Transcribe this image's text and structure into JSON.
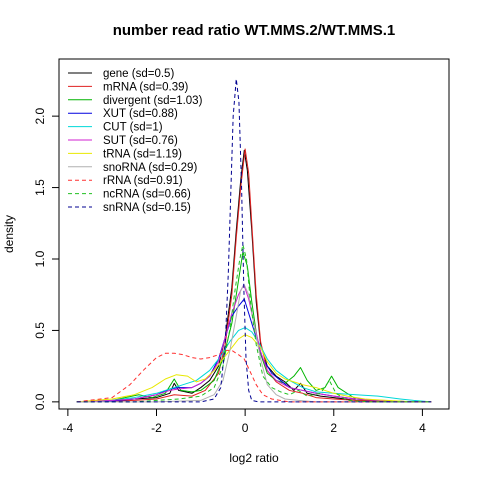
{
  "chart_data": {
    "type": "line",
    "title": "number read ratio WT.MMS.2/WT.MMS.1",
    "xlabel": "log2 ratio",
    "ylabel": "density",
    "xlim": [
      -4.2,
      4.6
    ],
    "ylim": [
      -0.05,
      2.4
    ],
    "xticks": [
      -4,
      -2,
      0,
      2,
      4
    ],
    "yticks": [
      0.0,
      0.5,
      1.0,
      1.5,
      2.0
    ],
    "xtick_labels": [
      "-4",
      "-2",
      "0",
      "2",
      "4"
    ],
    "ytick_labels": [
      "0.0",
      "0.5",
      "1.0",
      "1.5",
      "2.0"
    ],
    "legend_position": "top-left",
    "grid": false,
    "series": [
      {
        "name": "gene (sd=0.5)",
        "color": "#000000",
        "dash": "solid",
        "points": [
          [
            -3.8,
            0
          ],
          [
            -3.0,
            0.005
          ],
          [
            -2.5,
            0.02
          ],
          [
            -2.0,
            0.03
          ],
          [
            -1.7,
            0.06
          ],
          [
            -1.6,
            0.13
          ],
          [
            -1.5,
            0.08
          ],
          [
            -1.2,
            0.06
          ],
          [
            -1.0,
            0.1
          ],
          [
            -0.8,
            0.15
          ],
          [
            -0.6,
            0.25
          ],
          [
            -0.45,
            0.45
          ],
          [
            -0.3,
            0.8
          ],
          [
            -0.2,
            1.2
          ],
          [
            -0.1,
            1.55
          ],
          [
            -0.02,
            1.76
          ],
          [
            0.05,
            1.62
          ],
          [
            0.15,
            1.2
          ],
          [
            0.25,
            0.7
          ],
          [
            0.35,
            0.4
          ],
          [
            0.5,
            0.25
          ],
          [
            0.7,
            0.18
          ],
          [
            0.9,
            0.14
          ],
          [
            1.1,
            0.08
          ],
          [
            1.25,
            0.13
          ],
          [
            1.4,
            0.06
          ],
          [
            1.7,
            0.04
          ],
          [
            2.0,
            0.03
          ],
          [
            2.5,
            0.01
          ],
          [
            3.5,
            0
          ],
          [
            4.2,
            0
          ]
        ]
      },
      {
        "name": "mRNA (sd=0.39)",
        "color": "#df2020",
        "dash": "solid",
        "points": [
          [
            -3.8,
            0
          ],
          [
            -2.5,
            0.01
          ],
          [
            -2.0,
            0.02
          ],
          [
            -1.6,
            0.05
          ],
          [
            -1.2,
            0.04
          ],
          [
            -0.9,
            0.08
          ],
          [
            -0.6,
            0.2
          ],
          [
            -0.45,
            0.4
          ],
          [
            -0.3,
            0.75
          ],
          [
            -0.2,
            1.15
          ],
          [
            -0.1,
            1.5
          ],
          [
            0.0,
            1.77
          ],
          [
            0.08,
            1.6
          ],
          [
            0.15,
            1.25
          ],
          [
            0.25,
            0.75
          ],
          [
            0.35,
            0.42
          ],
          [
            0.5,
            0.22
          ],
          [
            0.7,
            0.14
          ],
          [
            1.0,
            0.08
          ],
          [
            1.3,
            0.06
          ],
          [
            1.6,
            0.03
          ],
          [
            2.0,
            0.02
          ],
          [
            2.5,
            0.01
          ],
          [
            3.5,
            0
          ],
          [
            4.2,
            0
          ]
        ]
      },
      {
        "name": "divergent (sd=1.03)",
        "color": "#00b400",
        "dash": "solid",
        "points": [
          [
            -3.8,
            0
          ],
          [
            -3.0,
            0.01
          ],
          [
            -2.4,
            0.05
          ],
          [
            -2.1,
            0.03
          ],
          [
            -1.8,
            0.06
          ],
          [
            -1.6,
            0.16
          ],
          [
            -1.45,
            0.08
          ],
          [
            -1.2,
            0.07
          ],
          [
            -1.0,
            0.08
          ],
          [
            -0.7,
            0.15
          ],
          [
            -0.5,
            0.3
          ],
          [
            -0.3,
            0.55
          ],
          [
            -0.15,
            0.85
          ],
          [
            -0.05,
            1.05
          ],
          [
            0.05,
            0.95
          ],
          [
            0.15,
            0.7
          ],
          [
            0.3,
            0.38
          ],
          [
            0.5,
            0.2
          ],
          [
            0.7,
            0.15
          ],
          [
            0.9,
            0.13
          ],
          [
            1.1,
            0.18
          ],
          [
            1.25,
            0.24
          ],
          [
            1.4,
            0.15
          ],
          [
            1.6,
            0.08
          ],
          [
            1.8,
            0.1
          ],
          [
            1.95,
            0.18
          ],
          [
            2.1,
            0.1
          ],
          [
            2.5,
            0.02
          ],
          [
            3.0,
            0.01
          ],
          [
            3.8,
            0
          ],
          [
            4.2,
            0
          ]
        ]
      },
      {
        "name": "XUT (sd=0.88)",
        "color": "#0000df",
        "dash": "solid",
        "points": [
          [
            -3.8,
            0
          ],
          [
            -3.0,
            0.005
          ],
          [
            -2.5,
            0.02
          ],
          [
            -2.0,
            0.05
          ],
          [
            -1.7,
            0.09
          ],
          [
            -1.5,
            0.1
          ],
          [
            -1.2,
            0.1
          ],
          [
            -1.0,
            0.13
          ],
          [
            -0.8,
            0.18
          ],
          [
            -0.6,
            0.3
          ],
          [
            -0.45,
            0.45
          ],
          [
            -0.3,
            0.6
          ],
          [
            -0.15,
            0.67
          ],
          [
            -0.02,
            0.72
          ],
          [
            0.1,
            0.6
          ],
          [
            0.25,
            0.45
          ],
          [
            0.4,
            0.3
          ],
          [
            0.6,
            0.2
          ],
          [
            0.8,
            0.15
          ],
          [
            1.0,
            0.1
          ],
          [
            1.3,
            0.08
          ],
          [
            1.6,
            0.06
          ],
          [
            2.0,
            0.04
          ],
          [
            2.5,
            0.02
          ],
          [
            3.0,
            0.01
          ],
          [
            3.8,
            0
          ],
          [
            4.2,
            0
          ]
        ]
      },
      {
        "name": "CUT (sd=1)",
        "color": "#00d8d8",
        "dash": "solid",
        "points": [
          [
            -3.8,
            0
          ],
          [
            -3.0,
            0.01
          ],
          [
            -2.5,
            0.03
          ],
          [
            -2.0,
            0.06
          ],
          [
            -1.7,
            0.09
          ],
          [
            -1.4,
            0.12
          ],
          [
            -1.1,
            0.15
          ],
          [
            -0.8,
            0.22
          ],
          [
            -0.55,
            0.32
          ],
          [
            -0.35,
            0.42
          ],
          [
            -0.15,
            0.5
          ],
          [
            0.0,
            0.52
          ],
          [
            0.15,
            0.49
          ],
          [
            0.3,
            0.42
          ],
          [
            0.5,
            0.3
          ],
          [
            0.7,
            0.22
          ],
          [
            1.0,
            0.15
          ],
          [
            1.3,
            0.1
          ],
          [
            1.6,
            0.07
          ],
          [
            2.0,
            0.06
          ],
          [
            2.5,
            0.05
          ],
          [
            3.0,
            0.04
          ],
          [
            3.5,
            0.02
          ],
          [
            3.8,
            0.01
          ],
          [
            4.2,
            0
          ]
        ]
      },
      {
        "name": "SUT (sd=0.76)",
        "color": "#d020d0",
        "dash": "solid",
        "points": [
          [
            -3.8,
            0
          ],
          [
            -3.0,
            0.01
          ],
          [
            -2.5,
            0.02
          ],
          [
            -2.0,
            0.05
          ],
          [
            -1.7,
            0.08
          ],
          [
            -1.5,
            0.09
          ],
          [
            -1.2,
            0.1
          ],
          [
            -1.0,
            0.13
          ],
          [
            -0.8,
            0.18
          ],
          [
            -0.6,
            0.28
          ],
          [
            -0.45,
            0.45
          ],
          [
            -0.3,
            0.62
          ],
          [
            -0.15,
            0.75
          ],
          [
            -0.03,
            0.82
          ],
          [
            0.08,
            0.72
          ],
          [
            0.2,
            0.55
          ],
          [
            0.35,
            0.35
          ],
          [
            0.5,
            0.22
          ],
          [
            0.7,
            0.15
          ],
          [
            1.0,
            0.1
          ],
          [
            1.3,
            0.08
          ],
          [
            1.6,
            0.06
          ],
          [
            2.0,
            0.04
          ],
          [
            2.5,
            0.02
          ],
          [
            3.0,
            0.01
          ],
          [
            3.8,
            0
          ],
          [
            4.2,
            0
          ]
        ]
      },
      {
        "name": "tRNA (sd=1.19)",
        "color": "#e8e800",
        "dash": "solid",
        "points": [
          [
            -3.8,
            0
          ],
          [
            -3.0,
            0.02
          ],
          [
            -2.5,
            0.05
          ],
          [
            -2.1,
            0.1
          ],
          [
            -1.8,
            0.16
          ],
          [
            -1.55,
            0.19
          ],
          [
            -1.3,
            0.18
          ],
          [
            -1.1,
            0.14
          ],
          [
            -0.9,
            0.16
          ],
          [
            -0.7,
            0.22
          ],
          [
            -0.5,
            0.3
          ],
          [
            -0.3,
            0.38
          ],
          [
            -0.15,
            0.44
          ],
          [
            0.0,
            0.47
          ],
          [
            0.15,
            0.45
          ],
          [
            0.35,
            0.38
          ],
          [
            0.5,
            0.28
          ],
          [
            0.7,
            0.2
          ],
          [
            0.9,
            0.16
          ],
          [
            1.1,
            0.14
          ],
          [
            1.3,
            0.12
          ],
          [
            1.6,
            0.1
          ],
          [
            1.8,
            0.08
          ],
          [
            2.0,
            0.06
          ],
          [
            2.3,
            0.04
          ],
          [
            2.7,
            0.02
          ],
          [
            3.2,
            0.01
          ],
          [
            3.8,
            0
          ],
          [
            4.2,
            0
          ]
        ]
      },
      {
        "name": "snoRNA (sd=0.29)",
        "color": "#b0b0b0",
        "dash": "solid",
        "points": [
          [
            -3.8,
            0
          ],
          [
            -2.0,
            0
          ],
          [
            -1.0,
            0.01
          ],
          [
            -0.7,
            0.05
          ],
          [
            -0.5,
            0.15
          ],
          [
            -0.35,
            0.35
          ],
          [
            -0.2,
            0.6
          ],
          [
            -0.1,
            0.78
          ],
          [
            -0.02,
            0.82
          ],
          [
            0.08,
            0.75
          ],
          [
            0.2,
            0.55
          ],
          [
            0.35,
            0.3
          ],
          [
            0.5,
            0.12
          ],
          [
            0.7,
            0.05
          ],
          [
            0.9,
            0.02
          ],
          [
            1.2,
            0.01
          ],
          [
            1.6,
            0
          ],
          [
            4.2,
            0
          ]
        ]
      },
      {
        "name": "rRNA (sd=0.91)",
        "color": "#ff3030",
        "dash": "dashed",
        "points": [
          [
            -3.8,
            0
          ],
          [
            -3.0,
            0.03
          ],
          [
            -2.6,
            0.12
          ],
          [
            -2.3,
            0.22
          ],
          [
            -2.0,
            0.31
          ],
          [
            -1.8,
            0.34
          ],
          [
            -1.6,
            0.34
          ],
          [
            -1.4,
            0.33
          ],
          [
            -1.2,
            0.31
          ],
          [
            -1.0,
            0.3
          ],
          [
            -0.8,
            0.31
          ],
          [
            -0.6,
            0.33
          ],
          [
            -0.45,
            0.36
          ],
          [
            -0.3,
            0.36
          ],
          [
            -0.15,
            0.33
          ],
          [
            -0.02,
            0.3
          ],
          [
            0.1,
            0.22
          ],
          [
            0.25,
            0.12
          ],
          [
            0.4,
            0.05
          ],
          [
            0.6,
            0.02
          ],
          [
            1.0,
            0
          ],
          [
            4.2,
            0
          ]
        ]
      },
      {
        "name": "ncRNA (sd=0.66)",
        "color": "#20c020",
        "dash": "dashed",
        "points": [
          [
            -3.8,
            0
          ],
          [
            -2.5,
            0
          ],
          [
            -2.0,
            0.01
          ],
          [
            -1.5,
            0.02
          ],
          [
            -1.0,
            0.04
          ],
          [
            -0.7,
            0.1
          ],
          [
            -0.5,
            0.25
          ],
          [
            -0.35,
            0.5
          ],
          [
            -0.22,
            0.8
          ],
          [
            -0.12,
            1.0
          ],
          [
            -0.05,
            1.1
          ],
          [
            0.03,
            1.0
          ],
          [
            0.12,
            0.7
          ],
          [
            0.25,
            0.4
          ],
          [
            0.4,
            0.18
          ],
          [
            0.6,
            0.1
          ],
          [
            0.8,
            0.07
          ],
          [
            1.0,
            0.05
          ],
          [
            1.2,
            0.08
          ],
          [
            1.4,
            0.04
          ],
          [
            1.7,
            0.06
          ],
          [
            1.9,
            0.15
          ],
          [
            2.05,
            0.06
          ],
          [
            2.3,
            0.01
          ],
          [
            2.8,
            0
          ],
          [
            4.2,
            0
          ]
        ]
      },
      {
        "name": "snRNA (sd=0.15)",
        "color": "#000090",
        "dash": "dashed",
        "points": [
          [
            -3.8,
            0
          ],
          [
            -1.0,
            0
          ],
          [
            -0.7,
            0.02
          ],
          [
            -0.55,
            0.1
          ],
          [
            -0.45,
            0.4
          ],
          [
            -0.38,
            0.9
          ],
          [
            -0.32,
            1.5
          ],
          [
            -0.27,
            2.0
          ],
          [
            -0.2,
            2.26
          ],
          [
            -0.14,
            2.1
          ],
          [
            -0.08,
            1.5
          ],
          [
            -0.03,
            0.8
          ],
          [
            0.02,
            0.3
          ],
          [
            0.08,
            0.08
          ],
          [
            0.15,
            0.01
          ],
          [
            0.3,
            0
          ],
          [
            4.2,
            0
          ]
        ]
      }
    ]
  }
}
